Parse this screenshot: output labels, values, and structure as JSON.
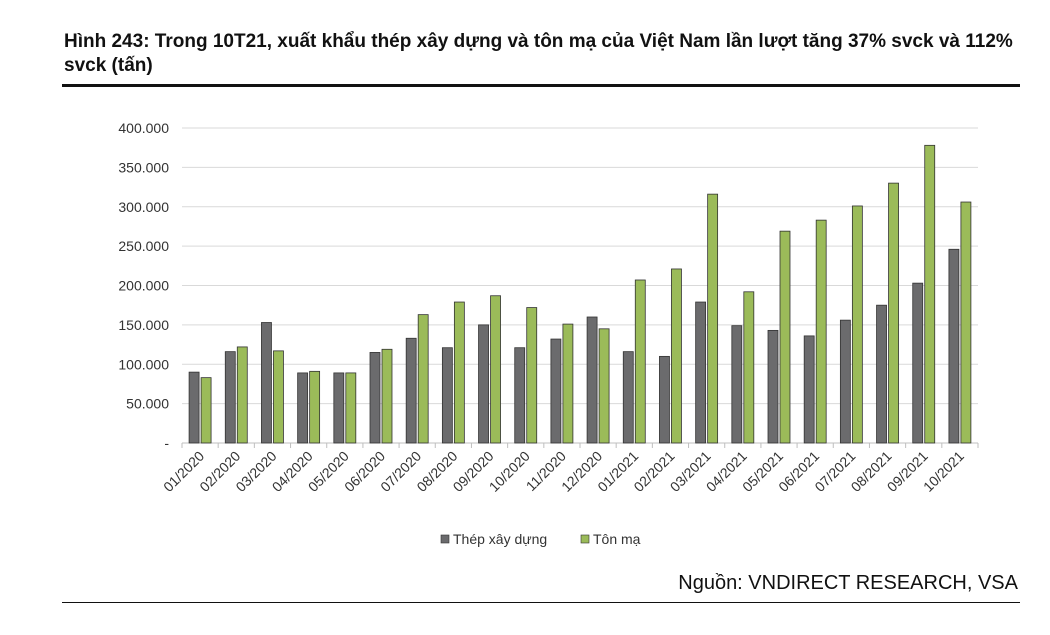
{
  "figure": {
    "title": "Hình 243: Trong 10T21, xuất khẩu thép xây dựng và tôn mạ của Việt Nam lần lượt tăng 37% svck và 112% svck (tấn)",
    "source": "Nguồn: VNDIRECT RESEARCH, VSA"
  },
  "colors": {
    "series1": "#6b6b6d",
    "series2": "#9bbb59",
    "grid": "#d9d9d9",
    "axis": "#bfbfbf"
  },
  "chart_data": {
    "type": "bar",
    "categories": [
      "01/2020",
      "02/2020",
      "03/2020",
      "04/2020",
      "05/2020",
      "06/2020",
      "07/2020",
      "08/2020",
      "09/2020",
      "10/2020",
      "11/2020",
      "12/2020",
      "01/2021",
      "02/2021",
      "03/2021",
      "04/2021",
      "05/2021",
      "06/2021",
      "07/2021",
      "08/2021",
      "09/2021",
      "10/2021"
    ],
    "series": [
      {
        "name": "Thép xây dựng",
        "values": [
          90000,
          116000,
          153000,
          89000,
          89000,
          115000,
          133000,
          121000,
          150000,
          121000,
          132000,
          160000,
          116000,
          110000,
          179000,
          149000,
          143000,
          136000,
          156000,
          175000,
          203000,
          246000
        ]
      },
      {
        "name": "Tôn mạ",
        "values": [
          83000,
          122000,
          117000,
          91000,
          89000,
          119000,
          163000,
          179000,
          187000,
          172000,
          151000,
          145000,
          207000,
          221000,
          316000,
          192000,
          269000,
          283000,
          301000,
          330000,
          378000,
          306000
        ]
      }
    ],
    "ylim": [
      0,
      400000
    ],
    "yticks": [
      0,
      50000,
      100000,
      150000,
      200000,
      250000,
      300000,
      350000,
      400000
    ],
    "ytick_labels": [
      "-",
      "50.000",
      "100.000",
      "150.000",
      "200.000",
      "250.000",
      "300.000",
      "350.000",
      "400.000"
    ],
    "grid": true,
    "legend": "bottom-center"
  }
}
